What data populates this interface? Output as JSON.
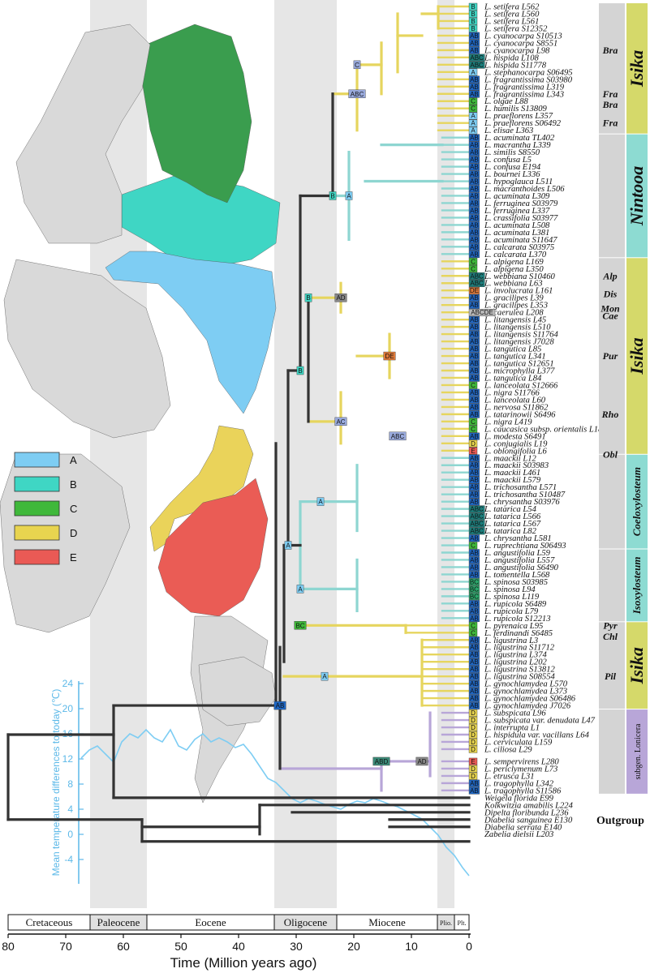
{
  "area_legend": [
    {
      "code": "A",
      "color": "#7ecdf3"
    },
    {
      "code": "B",
      "color": "#3fd6c4"
    },
    {
      "code": "C",
      "color": "#3fb83a"
    },
    {
      "code": "D",
      "color": "#e8d44f"
    },
    {
      "code": "E",
      "color": "#ea5a55"
    }
  ],
  "temperature_axis": {
    "title": "Mean temperature differences to today (℃)",
    "ticks": [
      "24",
      "20",
      "16",
      "12",
      "8",
      "4",
      "0",
      "-4"
    ]
  },
  "time_axis": {
    "title": "Time (Million years ago)",
    "ticks": [
      "80",
      "70",
      "60",
      "50",
      "40",
      "30",
      "20",
      "10",
      "0"
    ]
  },
  "epochs": [
    "Cretaceous",
    "Paleocene",
    "Eocene",
    "Oligocene",
    "Miocene",
    "Plio.",
    "Plt."
  ],
  "taxa": [
    "L. setifera L562",
    "L. setifera L560",
    "L. setifera L561",
    "L. setifera S12352",
    "L. cyanocarpa S10513",
    "L. cyanocarpa S8551",
    "L. cyanocarpa L98",
    "L. hispida L108",
    "L. hispida S11778",
    "L. stephanocarpa S06495",
    "L. fragrantissima S03980",
    "L. fragrantissima L319",
    "L. fragrantissima L343",
    "L. olgae L88",
    "L. humilis S13809",
    "L. praeflorens L357",
    "L. praeflorens S06492",
    "L. elisae L363",
    "L. acuminata TL402",
    "L. macrantha L339",
    "L. similis S8550",
    "L. confusa L5",
    "L. confusa E194",
    "L. bournei L336",
    "L. hypoglauca L511",
    "L. macranthoides L506",
    "L. acuminata L309",
    "L. ferruginea S03979",
    "L. ferruginea L337",
    "L. crassifolia S03977",
    "L. acuminata L508",
    "L. acuminata L381",
    "L. acuminata S11647",
    "L. calcarata S03975",
    "L. calcarata L370",
    "L. alpigena L169",
    "L. alpigena L350",
    "L. webbiana S10460",
    "L. webbiana L63",
    "L. involucrata L161",
    "L. gracilipes L39",
    "L. gracilipes L353",
    "L. caerulea L208",
    "L. litangensis L45",
    "L. litangensis L510",
    "L. litangensis S11764",
    "L. litangensis J7028",
    "L. tangutica L85",
    "L. tangutica L341",
    "L. tangutica S12651",
    "L. microphylla L377",
    "L. tangutica L84",
    "L. lanceolata S12666",
    "L. nigra S11766",
    "L. lanceolata L60",
    "L. nervosa S11862",
    "L. tatarinowii S6496",
    "L. nigra L419",
    "L. caucasica subsp. orientalis L18",
    "L. modesta S6491",
    "L. conjugialis L19",
    "L. oblongifolia L6",
    "L. maackii L12",
    "L. maackii S03983",
    "L. maackii L461",
    "L. maackii L579",
    "L. trichosantha L571",
    "L. trichosantha S10487",
    "L. chrysantha S03976",
    "L. tatarica L54",
    "L. tatarica L566",
    "L. tatarica L567",
    "L. tatarica L82",
    "L. chrysantha L581",
    "L. ruprechtiana S06493",
    "L. angustifolia L59",
    "L. angustifolia L557",
    "L. angustifolia S6490",
    "L. tomentella L568",
    "L. spinosa S03985",
    "L. spinosa L94",
    "L. spinosa L119",
    "L. rupicola S6489",
    "L. rupicola L79",
    "L. rupicola S12213",
    "L. pyrenaica L95",
    "L. ferdinandi S6485",
    "L. ligustrina L3",
    "L. ligustrina S11712",
    "L. ligustrina L374",
    "L. ligustrina L202",
    "L. ligustrina S13812",
    "L. ligustrina S08554",
    "L. gynochlamydea L570",
    "L. gynochlamydea L373",
    "L. gynochlamydea S06486",
    "L. gynochlamydea J7026",
    "L. subspicata L96",
    "L. subspicata var. denudata L47",
    "L. interrupta L1",
    "L. hispidula var. vacillans L64",
    "L. cerviculata L159",
    "L. ciliosa L29",
    "L. sempervirens L280",
    "L. periclymenum L73",
    "L. etrusca L31",
    "L. tragophylla L342",
    "L. tragophylla S11586",
    "Weigela florida E99",
    "Kolkwitzia amabilis L224",
    "Dipelta floribunda L236",
    "Diabelia sanguinea E130",
    "Diabelia serrata E140",
    "Zabelia dielsii L203"
  ],
  "tip_areas": [
    "B",
    "B",
    "B",
    "B",
    "AB",
    "AB",
    "AB",
    "ABC",
    "ABC",
    "A",
    "AB",
    "AB",
    "AB",
    "C",
    "C",
    "A",
    "A",
    "A",
    "AB",
    "AB",
    "AB",
    "AB",
    "AB",
    "AB",
    "AB",
    "AB",
    "AB",
    "AB",
    "AB",
    "AB",
    "AB",
    "AB",
    "AB",
    "AB",
    "AB",
    "C",
    "C",
    "ABC",
    "ABC",
    "DE",
    "AB",
    "AB",
    "ABCDE",
    "AB",
    "AB",
    "AB",
    "AB",
    "AB",
    "AB",
    "AB",
    "AB",
    "AB",
    "C",
    "AB",
    "AB",
    "AB",
    "AB",
    "C",
    "C",
    "AB",
    "D",
    "E",
    "AB",
    "AB",
    "AB",
    "AB",
    "AB",
    "AB",
    "AB",
    "ABC",
    "ABC",
    "ABC",
    "ABC",
    "AB",
    "C",
    "AB",
    "AB",
    "AB",
    "AB",
    "BC",
    "BC",
    "BC",
    "AB",
    "AB",
    "AB",
    "C",
    "C",
    "AB",
    "AB",
    "AB",
    "AB",
    "AB",
    "AB",
    "AB",
    "AB",
    "AB",
    "AB",
    "D",
    "D",
    "D",
    "D",
    "D",
    "D",
    "E",
    "D",
    "D",
    "AB",
    "AB",
    "",
    "",
    "",
    "",
    "",
    ""
  ],
  "groups": [
    {
      "label": "Isika",
      "size": "big"
    },
    {
      "label": "Nintooa",
      "size": "big"
    },
    {
      "label": "Isika",
      "size": "big"
    },
    {
      "label": "Coeloxylosteum",
      "size": "mid"
    },
    {
      "label": "Isoxylosteum",
      "size": "mid"
    },
    {
      "label": "Isika",
      "size": "big"
    },
    {
      "label": "subgen. Lonicera",
      "size": "lon"
    }
  ],
  "subgroups": [
    "Bra",
    "Fra",
    "Bra",
    "Fra",
    "Alp",
    "Dis",
    "Mon",
    "Cae",
    "Pur",
    "Rho",
    "Obl",
    "Pyr",
    "Chl",
    "Pil"
  ],
  "outgroup_label": "Outgroup",
  "node_labels": [
    "AB",
    "B",
    "B",
    "B",
    "A",
    "A",
    "A",
    "BC",
    "C",
    "A",
    "AD",
    "ABC",
    "AC",
    "DE",
    "ABD",
    "A",
    "AD",
    "ABC"
  ]
}
